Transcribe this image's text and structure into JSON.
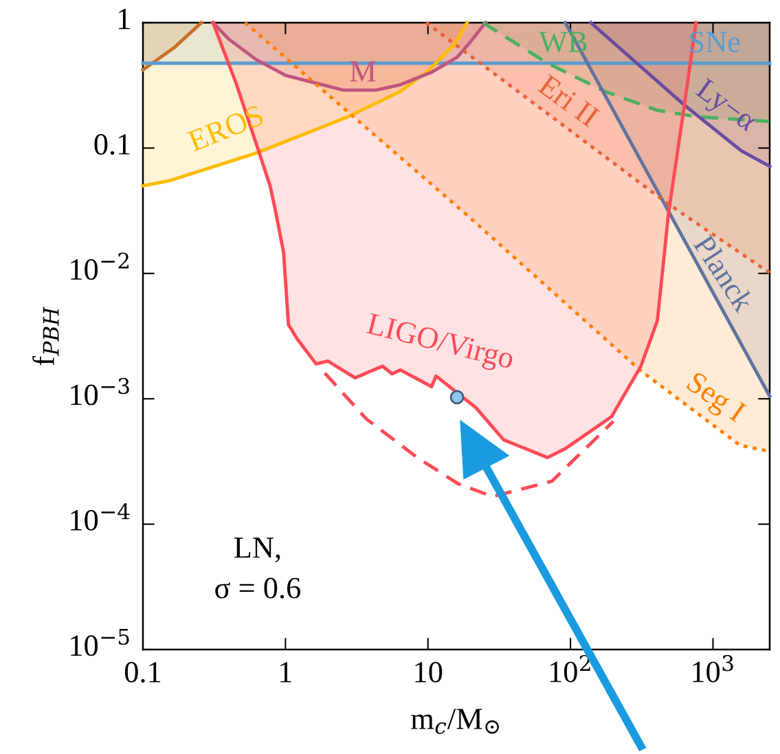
{
  "chart_data": {
    "type": "line",
    "xlabel": "m$_{c}$/M$_{⊙}$",
    "ylabel": "f$_{PBH}$",
    "log": "xy",
    "grid": false,
    "legend": false,
    "xlim": [
      0.1,
      2500
    ],
    "ylim": [
      1e-05,
      1
    ],
    "xticks": [
      0.1,
      1,
      10,
      {
        "value": 100,
        "label": "10$^{2}$"
      },
      {
        "value": 1000,
        "label": "10$^{3}$"
      }
    ],
    "yticks": [
      {
        "value": 1e-05,
        "label": "10$^{−5}$"
      },
      {
        "value": 0.0001,
        "label": "10$^{−4}$"
      },
      {
        "value": 0.001,
        "label": "10$^{−3}$"
      },
      {
        "value": 0.01,
        "label": "10$^{−2}$"
      },
      0.1,
      1
    ],
    "series": [
      {
        "color": "#c8702a",
        "line_style": "solid",
        "x": [
          0.1,
          0.165,
          0.257
        ],
        "values": [
          0.42,
          0.63,
          1
        ]
      },
      {
        "color": "#5b9bd0",
        "line_style": "solid",
        "x": [
          0.1,
          2500
        ],
        "values": [
          0.475,
          0.475
        ]
      },
      {
        "color": "#ffbb00",
        "line_style": "solid",
        "x": [
          0.1,
          0.154,
          0.62,
          2.76,
          6.4,
          10,
          15.6,
          18.8
        ],
        "values": [
          0.05,
          0.055,
          0.091,
          0.178,
          0.283,
          0.41,
          0.685,
          1
        ]
      },
      {
        "color": "#c0557f",
        "line_style": "solid",
        "x": [
          0.31,
          0.4,
          0.62,
          1.0,
          2.55,
          4.3,
          6.4,
          10.5,
          16,
          19.5,
          25.4
        ],
        "values": [
          1,
          0.74,
          0.51,
          0.38,
          0.29,
          0.29,
          0.32,
          0.4,
          0.53,
          0.685,
          1
        ]
      },
      {
        "color": "#4caf60",
        "line_style": "dashed",
        "x": [
          24.3,
          69,
          174,
          407,
          760,
          2480
        ],
        "values": [
          1,
          0.475,
          0.283,
          0.2,
          0.178,
          0.163
        ]
      },
      {
        "color": "#6a4ca0",
        "line_style": "solid",
        "x": [
          139,
          630,
          1580,
          2500
        ],
        "values": [
          1,
          0.22,
          0.095,
          0.0716
        ]
      },
      {
        "color": "#60749f",
        "line_style": "solid",
        "x": [
          92,
          2500
        ],
        "values": [
          1,
          0.00105
        ]
      },
      {
        "color": "#e8633a",
        "line_style": "dotted",
        "x": [
          9.7,
          487,
          2500
        ],
        "values": [
          1,
          0.0357,
          0.0101
        ]
      },
      {
        "color": "#ff8000",
        "line_style": "dotted",
        "x": [
          0.52,
          18.8,
          312,
          1540,
          2500
        ],
        "values": [
          1,
          0.0292,
          0.00167,
          0.000427,
          0.00038
        ]
      },
      {
        "color": "#ff4a55",
        "line_style": "solid",
        "x": [
          0.31,
          0.45,
          0.65,
          0.78,
          0.84,
          0.97,
          1.05,
          1.21,
          1.64,
          1.98,
          3.08,
          4.8,
          5.6,
          6.4,
          10.6,
          11.4,
          21.7,
          34,
          69,
          92,
          194,
          312,
          407,
          457,
          487,
          630,
          760
        ],
        "values": [
          1,
          0.33,
          0.094,
          0.05,
          0.034,
          0.0148,
          0.0039,
          0.003,
          0.0019,
          0.002,
          0.00147,
          0.00182,
          0.00158,
          0.0017,
          0.00125,
          0.00152,
          0.00085,
          0.00047,
          0.00034,
          0.0004,
          0.00072,
          0.00182,
          0.0042,
          0.0148,
          0.03,
          0.22,
          1
        ]
      },
      {
        "color": "#ff4a55",
        "line_style": "dashed",
        "x": [
          1.89,
          3.7,
          8.4,
          16.3,
          28.4,
          74,
          200
        ],
        "values": [
          0.0016,
          0.00069,
          0.00034,
          0.00021,
          0.000166,
          0.00022,
          0.00066
        ]
      },
      {
        "type": "scatter",
        "color": "#8ec5e8",
        "marker": "circle",
        "x": [
          16
        ],
        "values": [
          0.00103
        ]
      }
    ],
    "annotations": [
      "EROS",
      "M",
      "WB",
      "SNe",
      "Eri II",
      "Ly−α",
      "Planck",
      "LIGO/Virgo",
      "Seg I",
      "LN,\nσ = 0.6"
    ]
  }
}
